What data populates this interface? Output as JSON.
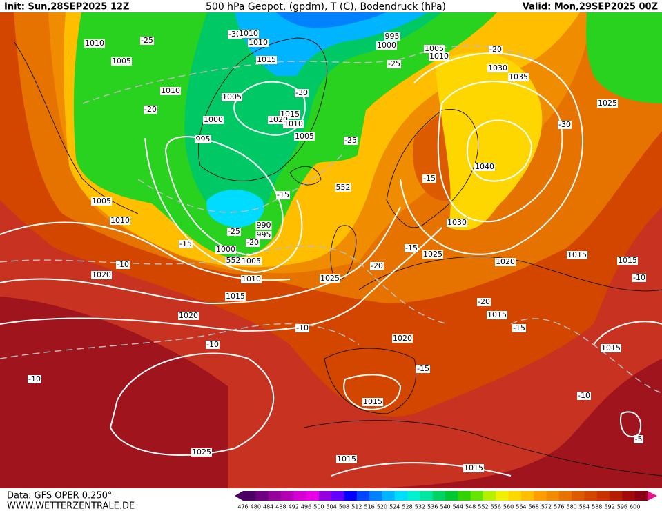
{
  "header": {
    "init": "Init: Sun,28SEP2025 12Z",
    "title": "500 hPa Geopot. (gpdm), T (C), Bodendruck (hPa)",
    "valid": "Valid: Mon,29SEP2025 00Z"
  },
  "footer": {
    "data": "Data: GFS OPER 0.250°",
    "site": "WWW.WETTERZENTRALE.DE"
  },
  "colorbar": {
    "labels": [
      476,
      480,
      484,
      488,
      492,
      496,
      500,
      504,
      508,
      512,
      516,
      520,
      524,
      528,
      532,
      536,
      540,
      544,
      548,
      552,
      556,
      560,
      564,
      568,
      572,
      576,
      580,
      584,
      588,
      592,
      596,
      600
    ],
    "colors": [
      "#4b0064",
      "#6e0082",
      "#96009b",
      "#b400b4",
      "#d200d2",
      "#e600e6",
      "#9600dc",
      "#6400ff",
      "#0000ff",
      "#0046ff",
      "#0082ff",
      "#00b4ff",
      "#00dcff",
      "#00f0d2",
      "#00e6a0",
      "#00d264",
      "#00c832",
      "#32d200",
      "#64e600",
      "#b4f000",
      "#f0f000",
      "#ffd700",
      "#ffbe00",
      "#ffa000",
      "#f08c00",
      "#e67300",
      "#dc5a00",
      "#d24600",
      "#c83200",
      "#b41e00",
      "#a00a0a",
      "#8c0014"
    ]
  },
  "labels": [
    "-30",
    "1010",
    "1010",
    "1010",
    "-25",
    "1005",
    "1015",
    "1010",
    "1005",
    "-20",
    "-30",
    "1015",
    "1020",
    "1010",
    "1000",
    "995",
    "1005",
    "995",
    "1000",
    "1005",
    "1010",
    "-25",
    "-20",
    "1030",
    "1035",
    "1025",
    "-30",
    "-25",
    "552",
    "1040",
    "-15",
    "-15",
    "1005",
    "1010",
    "990",
    "995",
    "-25",
    "-20",
    "-15",
    "1000",
    "1005",
    "552",
    "1030",
    "-15",
    "1025",
    "1020",
    "1015",
    "1015",
    "-10",
    "-20",
    "1020",
    "1010",
    "1025",
    "-10",
    "1015",
    "-20",
    "1015",
    "1020",
    "-15",
    "-10",
    "1020",
    "-10",
    "1015",
    "-15",
    "-10",
    "1015",
    "-10",
    "-5",
    "1025",
    "1015",
    "1015"
  ]
}
